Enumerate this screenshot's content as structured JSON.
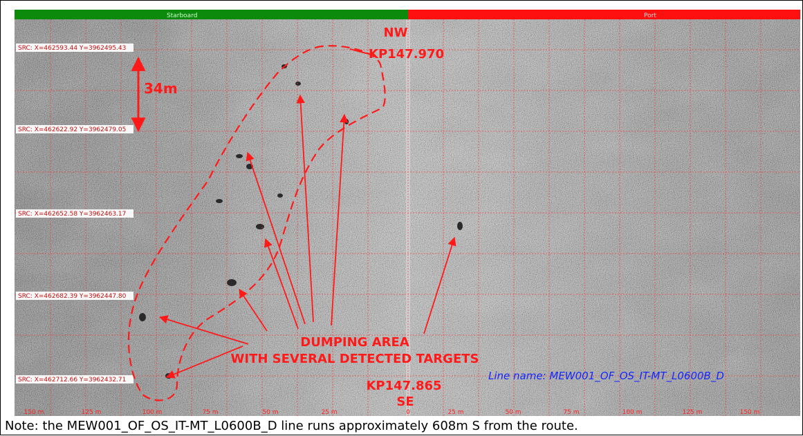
{
  "header": {
    "starboard_label": "Starboard",
    "port_label": "Port"
  },
  "colors": {
    "starboard": "#0b8a0b",
    "port": "#ff1010",
    "annotation": "#ff1a1a",
    "line_name": "#1428ff"
  },
  "src_labels": [
    "SRC: X=462593.44 Y=3962495.43",
    "SRC: X=462622.92 Y=3962479.05",
    "SRC: X=462652.58 Y=3962463.17",
    "SRC: X=462682.39 Y=3962447.80",
    "SRC: X=462712.66 Y=3962432.71"
  ],
  "range_labels": [
    "150 m",
    "125 m",
    "100 m",
    "75 m",
    "50 m",
    "25 m",
    "0",
    "25 m",
    "50 m",
    "75 m",
    "100 m",
    "125 m",
    "150 m"
  ],
  "annotations": {
    "nw": "NW",
    "kp_top": "KP147.970",
    "scale": "34m",
    "dumping_line1": "DUMPING AREA",
    "dumping_line2": "WITH SEVERAL DETECTED TARGETS",
    "kp_bottom": "KP147.865",
    "se": "SE",
    "line_name": "Line name: MEW001_OF_OS_IT-MT_L0600B_D"
  },
  "caption": "Note: the MEW001_OF_OS_IT-MT_L0600B_D line runs approximately 608m S from the route."
}
